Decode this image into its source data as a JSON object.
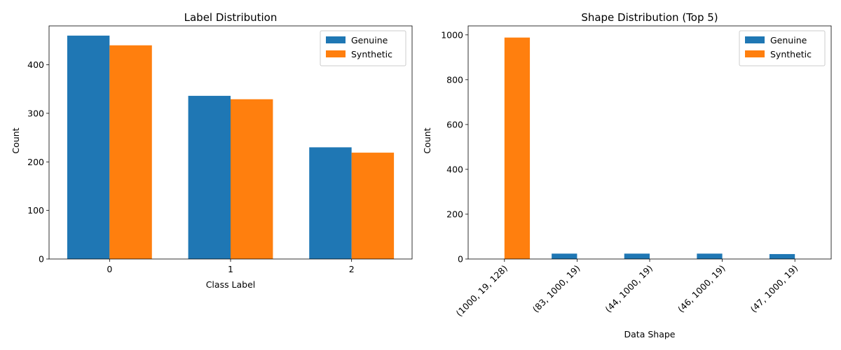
{
  "chart_data": [
    {
      "type": "bar",
      "title": "Label Distribution",
      "xlabel": "Class Label",
      "ylabel": "Count",
      "categories": [
        "0",
        "1",
        "2"
      ],
      "series": [
        {
          "name": "Genuine",
          "values": [
            460,
            336,
            230
          ]
        },
        {
          "name": "Synthetic",
          "values": [
            440,
            329,
            219
          ]
        }
      ],
      "ylim": [
        0,
        480
      ],
      "yticks": [
        0,
        100,
        200,
        300,
        400
      ],
      "legend": "top-right",
      "grid": false,
      "colors": [
        "#1f77b4",
        "#ff7f0e"
      ]
    },
    {
      "type": "bar",
      "title": "Shape Distribution (Top 5)",
      "xlabel": "Data Shape",
      "ylabel": "Count",
      "categories": [
        "(1000, 19, 128)",
        "(83, 1000, 19)",
        "(44, 1000, 19)",
        "(46, 1000, 19)",
        "(47, 1000, 19)"
      ],
      "series": [
        {
          "name": "Genuine",
          "values": [
            0,
            24,
            24,
            24,
            22
          ]
        },
        {
          "name": "Synthetic",
          "values": [
            988,
            0,
            0,
            0,
            0
          ]
        }
      ],
      "ylim": [
        0,
        1040
      ],
      "yticks": [
        0,
        200,
        400,
        600,
        800,
        1000
      ],
      "xtick_rotation": 45,
      "legend": "top-right",
      "grid": false,
      "colors": [
        "#1f77b4",
        "#ff7f0e"
      ]
    }
  ]
}
